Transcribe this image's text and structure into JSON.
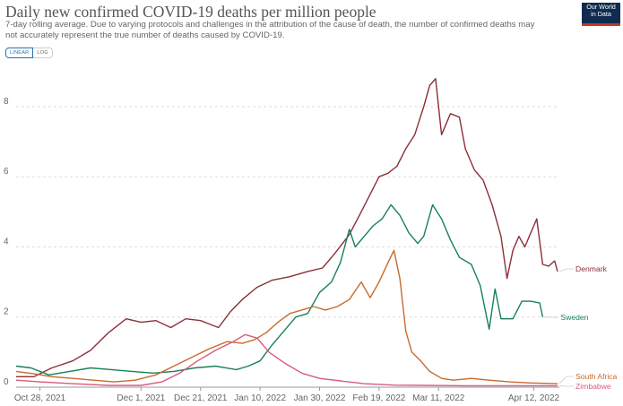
{
  "header": {
    "title": "Daily new confirmed COVID-19 deaths per million people",
    "subtitle": "7-day rolling average. Due to varying protocols and challenges in the attribution of the cause of death, the number of confirmed deaths may not accurately represent the true number of deaths caused by COVID-19.",
    "logo_line1": "Our World",
    "logo_line2": "in Data"
  },
  "controls": {
    "linear_label": "LINEAR",
    "log_label": "LOG"
  },
  "chart_data": {
    "type": "line",
    "x_start": "2021-10-20",
    "x_end": "2022-04-20",
    "xlim": [
      "2021-10-20",
      "2022-04-20"
    ],
    "ylim": [
      0,
      9.2
    ],
    "x_ticks": [
      "Oct 28, 2021",
      "Dec 1, 2021",
      "Dec 21, 2021",
      "Jan 10, 2022",
      "Jan 30, 2022",
      "Feb 19, 2022",
      "Mar 11, 2022",
      "Apr 12, 2022"
    ],
    "x_tick_dates": [
      "2021-10-28",
      "2021-12-01",
      "2021-12-21",
      "2022-01-10",
      "2022-01-30",
      "2022-02-19",
      "2022-03-11",
      "2022-04-12"
    ],
    "y_ticks": [
      0,
      2,
      4,
      6,
      8
    ],
    "grid": "horizontal dashed",
    "legend": "labels at line ends",
    "series": [
      {
        "name": "Denmark",
        "color": "#8c2f39",
        "points": [
          [
            "2021-10-20",
            0.3
          ],
          [
            "2021-10-26",
            0.3
          ],
          [
            "2021-11-01",
            0.55
          ],
          [
            "2021-11-08",
            0.75
          ],
          [
            "2021-11-14",
            1.05
          ],
          [
            "2021-11-20",
            1.55
          ],
          [
            "2021-11-26",
            1.95
          ],
          [
            "2021-12-01",
            1.85
          ],
          [
            "2021-12-06",
            1.9
          ],
          [
            "2021-12-11",
            1.7
          ],
          [
            "2021-12-16",
            1.95
          ],
          [
            "2021-12-21",
            1.9
          ],
          [
            "2021-12-24",
            1.8
          ],
          [
            "2021-12-27",
            1.7
          ],
          [
            "2021-12-31",
            2.15
          ],
          [
            "2022-01-04",
            2.5
          ],
          [
            "2022-01-09",
            2.85
          ],
          [
            "2022-01-14",
            3.05
          ],
          [
            "2022-01-20",
            3.15
          ],
          [
            "2022-01-26",
            3.3
          ],
          [
            "2022-01-31",
            3.4
          ],
          [
            "2022-02-04",
            3.8
          ],
          [
            "2022-02-09",
            4.35
          ],
          [
            "2022-02-13",
            5.0
          ],
          [
            "2022-02-16",
            5.5
          ],
          [
            "2022-02-19",
            6.0
          ],
          [
            "2022-02-22",
            6.1
          ],
          [
            "2022-02-25",
            6.3
          ],
          [
            "2022-02-28",
            6.8
          ],
          [
            "2022-03-03",
            7.2
          ],
          [
            "2022-03-06",
            8.0
          ],
          [
            "2022-03-08",
            8.6
          ],
          [
            "2022-03-10",
            8.8
          ],
          [
            "2022-03-12",
            7.2
          ],
          [
            "2022-03-15",
            7.8
          ],
          [
            "2022-03-18",
            7.7
          ],
          [
            "2022-03-20",
            6.8
          ],
          [
            "2022-03-23",
            6.2
          ],
          [
            "2022-03-26",
            5.9
          ],
          [
            "2022-03-29",
            5.2
          ],
          [
            "2022-04-01",
            4.3
          ],
          [
            "2022-04-03",
            3.1
          ],
          [
            "2022-04-05",
            3.9
          ],
          [
            "2022-04-07",
            4.3
          ],
          [
            "2022-04-09",
            4.0
          ],
          [
            "2022-04-11",
            4.4
          ],
          [
            "2022-04-13",
            4.8
          ],
          [
            "2022-04-15",
            3.5
          ],
          [
            "2022-04-17",
            3.45
          ],
          [
            "2022-04-19",
            3.6
          ],
          [
            "2022-04-20",
            3.3
          ]
        ]
      },
      {
        "name": "Sweden",
        "color": "#18805a",
        "points": [
          [
            "2021-10-20",
            0.6
          ],
          [
            "2021-10-25",
            0.55
          ],
          [
            "2021-10-31",
            0.35
          ],
          [
            "2021-11-07",
            0.45
          ],
          [
            "2021-11-14",
            0.55
          ],
          [
            "2021-11-21",
            0.5
          ],
          [
            "2021-11-28",
            0.45
          ],
          [
            "2021-12-05",
            0.4
          ],
          [
            "2021-12-12",
            0.45
          ],
          [
            "2021-12-19",
            0.55
          ],
          [
            "2021-12-26",
            0.6
          ],
          [
            "2022-01-02",
            0.5
          ],
          [
            "2022-01-06",
            0.6
          ],
          [
            "2022-01-10",
            0.75
          ],
          [
            "2022-01-14",
            1.2
          ],
          [
            "2022-01-18",
            1.6
          ],
          [
            "2022-01-22",
            2.0
          ],
          [
            "2022-01-26",
            2.1
          ],
          [
            "2022-01-30",
            2.7
          ],
          [
            "2022-02-03",
            3.0
          ],
          [
            "2022-02-06",
            3.55
          ],
          [
            "2022-02-09",
            4.5
          ],
          [
            "2022-02-11",
            4.0
          ],
          [
            "2022-02-14",
            4.3
          ],
          [
            "2022-02-17",
            4.6
          ],
          [
            "2022-02-20",
            4.8
          ],
          [
            "2022-02-23",
            5.2
          ],
          [
            "2022-02-26",
            4.9
          ],
          [
            "2022-03-01",
            4.4
          ],
          [
            "2022-03-04",
            4.1
          ],
          [
            "2022-03-06",
            4.3
          ],
          [
            "2022-03-09",
            5.2
          ],
          [
            "2022-03-12",
            4.8
          ],
          [
            "2022-03-15",
            4.2
          ],
          [
            "2022-03-18",
            3.7
          ],
          [
            "2022-03-22",
            3.5
          ],
          [
            "2022-03-25",
            2.9
          ],
          [
            "2022-03-28",
            1.65
          ],
          [
            "2022-03-30",
            2.8
          ],
          [
            "2022-04-01",
            1.95
          ],
          [
            "2022-04-05",
            1.95
          ],
          [
            "2022-04-08",
            2.45
          ],
          [
            "2022-04-11",
            2.45
          ],
          [
            "2022-04-14",
            2.4
          ],
          [
            "2022-04-15",
            2.0
          ]
        ]
      },
      {
        "name": "South Africa",
        "color": "#c86a2d",
        "points": [
          [
            "2021-10-20",
            0.45
          ],
          [
            "2021-10-26",
            0.38
          ],
          [
            "2021-11-01",
            0.3
          ],
          [
            "2021-11-08",
            0.25
          ],
          [
            "2021-11-15",
            0.2
          ],
          [
            "2021-11-22",
            0.15
          ],
          [
            "2021-11-29",
            0.2
          ],
          [
            "2021-12-06",
            0.35
          ],
          [
            "2021-12-12",
            0.6
          ],
          [
            "2021-12-18",
            0.85
          ],
          [
            "2021-12-24",
            1.1
          ],
          [
            "2021-12-30",
            1.3
          ],
          [
            "2022-01-04",
            1.25
          ],
          [
            "2022-01-08",
            1.35
          ],
          [
            "2022-01-12",
            1.55
          ],
          [
            "2022-01-16",
            1.85
          ],
          [
            "2022-01-20",
            2.1
          ],
          [
            "2022-01-24",
            2.2
          ],
          [
            "2022-01-28",
            2.3
          ],
          [
            "2022-02-01",
            2.2
          ],
          [
            "2022-02-05",
            2.3
          ],
          [
            "2022-02-09",
            2.5
          ],
          [
            "2022-02-13",
            3.0
          ],
          [
            "2022-02-16",
            2.55
          ],
          [
            "2022-02-19",
            3.0
          ],
          [
            "2022-02-22",
            3.55
          ],
          [
            "2022-02-24",
            3.9
          ],
          [
            "2022-02-26",
            3.1
          ],
          [
            "2022-02-28",
            1.6
          ],
          [
            "2022-03-02",
            1.0
          ],
          [
            "2022-03-05",
            0.75
          ],
          [
            "2022-03-08",
            0.45
          ],
          [
            "2022-03-12",
            0.25
          ],
          [
            "2022-03-16",
            0.2
          ],
          [
            "2022-03-22",
            0.25
          ],
          [
            "2022-03-28",
            0.2
          ],
          [
            "2022-04-04",
            0.15
          ],
          [
            "2022-04-11",
            0.12
          ],
          [
            "2022-04-20",
            0.1
          ]
        ]
      },
      {
        "name": "Zimbabwe",
        "color": "#d95b7a",
        "points": [
          [
            "2021-10-20",
            0.2
          ],
          [
            "2021-10-28",
            0.15
          ],
          [
            "2021-11-08",
            0.1
          ],
          [
            "2021-11-20",
            0.05
          ],
          [
            "2021-12-01",
            0.05
          ],
          [
            "2021-12-08",
            0.15
          ],
          [
            "2021-12-14",
            0.4
          ],
          [
            "2021-12-20",
            0.75
          ],
          [
            "2021-12-26",
            1.05
          ],
          [
            "2022-01-01",
            1.3
          ],
          [
            "2022-01-05",
            1.5
          ],
          [
            "2022-01-09",
            1.4
          ],
          [
            "2022-01-13",
            1.0
          ],
          [
            "2022-01-18",
            0.7
          ],
          [
            "2022-01-24",
            0.4
          ],
          [
            "2022-01-30",
            0.25
          ],
          [
            "2022-02-06",
            0.18
          ],
          [
            "2022-02-14",
            0.1
          ],
          [
            "2022-02-24",
            0.06
          ],
          [
            "2022-03-06",
            0.05
          ],
          [
            "2022-03-20",
            0.04
          ],
          [
            "2022-04-04",
            0.04
          ],
          [
            "2022-04-20",
            0.04
          ]
        ]
      }
    ]
  }
}
